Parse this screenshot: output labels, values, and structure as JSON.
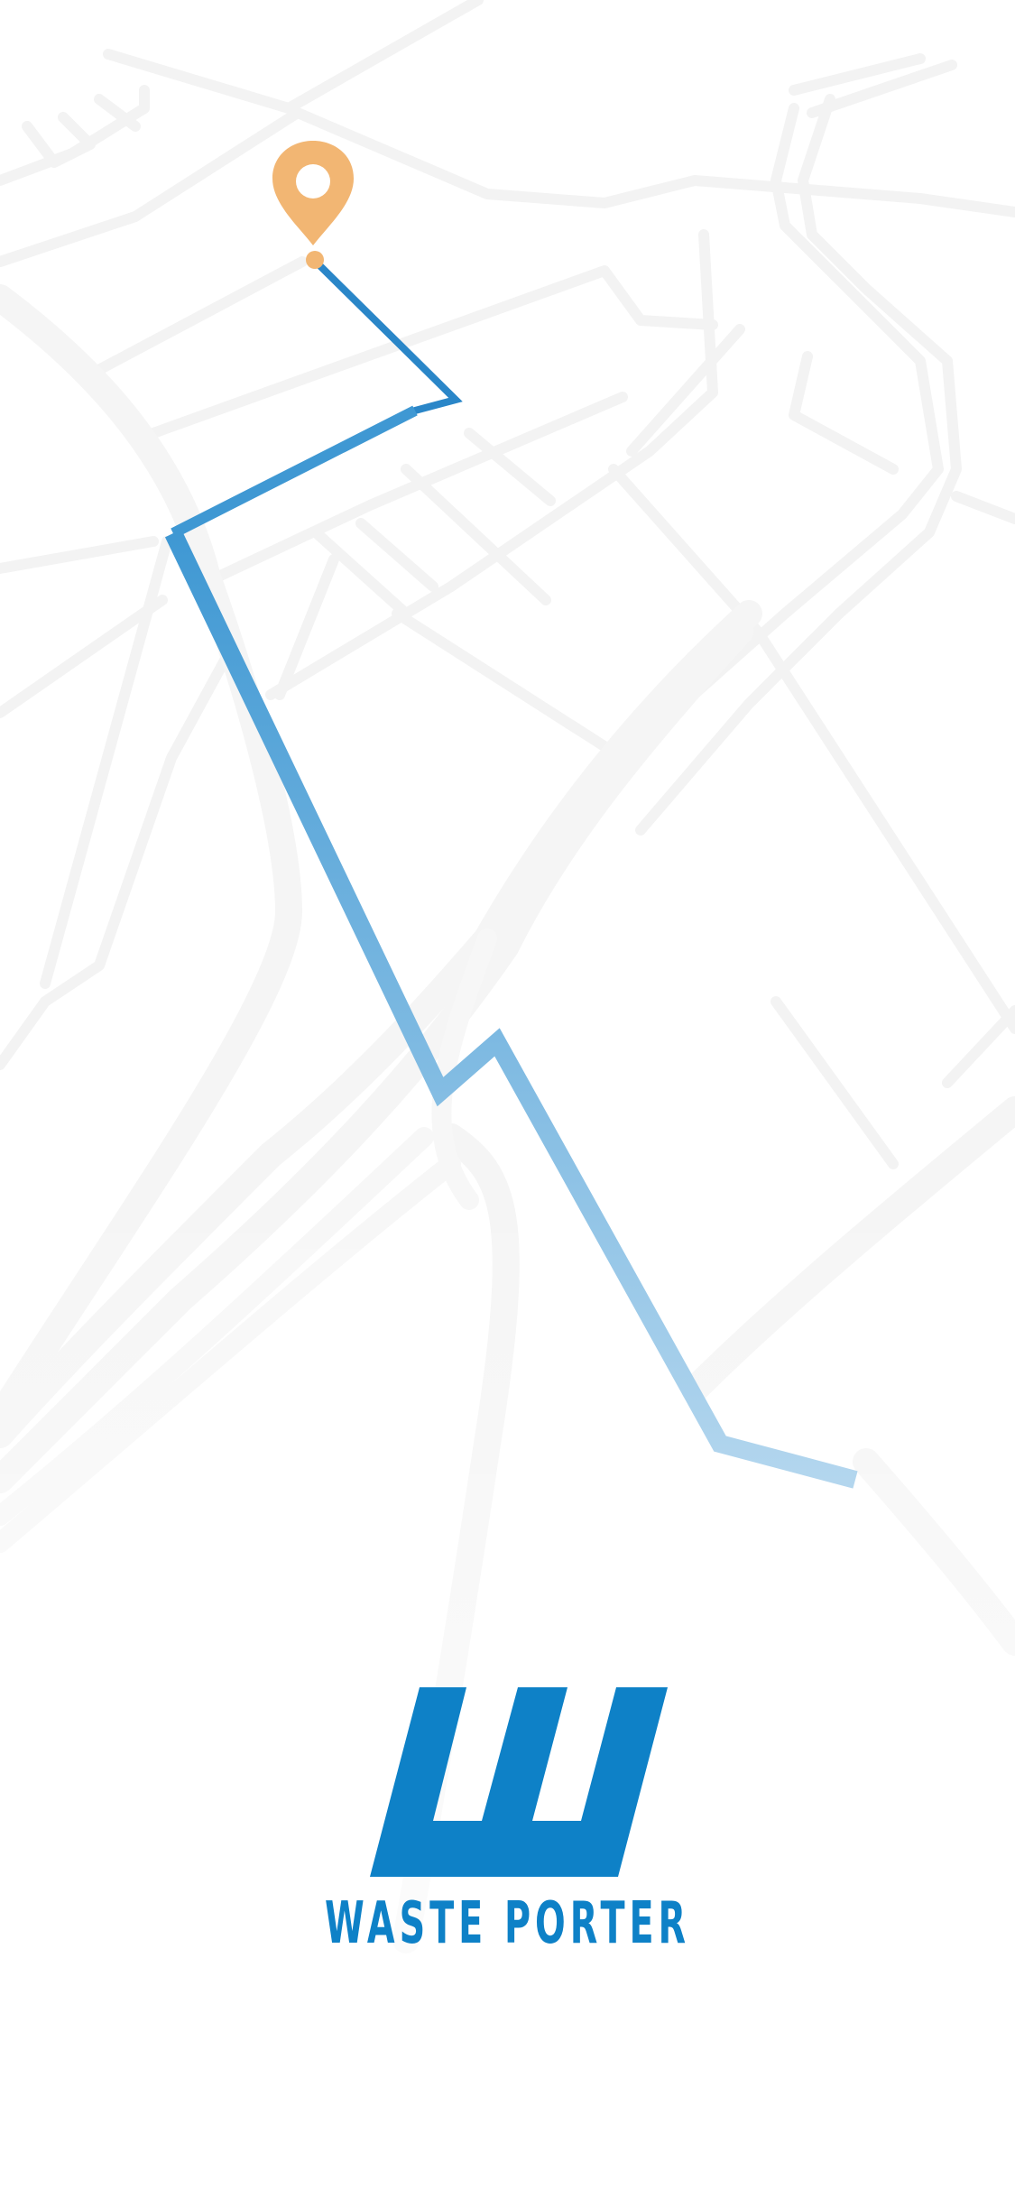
{
  "app": {
    "brand_name": "WASTE PORTER",
    "brand_color": "#0e81c7",
    "pin_color": "#f2b673",
    "route_color_start": "#3f98d3",
    "route_color_end": "#b3d6ee",
    "road_color": "#f3f3f3"
  },
  "icons": {
    "logo": "w-monogram-logo",
    "pin": "location-pin-icon"
  }
}
